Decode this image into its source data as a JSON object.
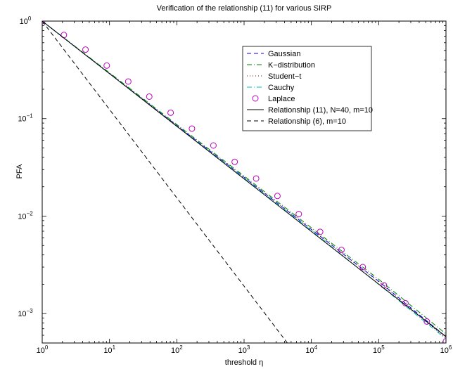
{
  "chart_data": {
    "type": "line",
    "title": "Verification of the relationship (11) for various SIRP",
    "xlabel": "threshold η",
    "ylabel": "PFA",
    "xscale": "log",
    "yscale": "log",
    "xlim": [
      1,
      1000000
    ],
    "ylim": [
      0.0005,
      1
    ],
    "grid": false,
    "legend_position": "top-right",
    "x_ticks": [
      {
        "value": 1,
        "base": "10",
        "exp": "0"
      },
      {
        "value": 10,
        "base": "10",
        "exp": "1"
      },
      {
        "value": 100,
        "base": "10",
        "exp": "2"
      },
      {
        "value": 1000,
        "base": "10",
        "exp": "3"
      },
      {
        "value": 10000,
        "base": "10",
        "exp": "4"
      },
      {
        "value": 100000,
        "base": "10",
        "exp": "5"
      },
      {
        "value": 1000000,
        "base": "10",
        "exp": "6"
      }
    ],
    "y_ticks": [
      {
        "value": 1,
        "base": "10",
        "exp": "0"
      },
      {
        "value": 0.1,
        "base": "10",
        "exp": "−1"
      },
      {
        "value": 0.01,
        "base": "10",
        "exp": "−2"
      },
      {
        "value": 0.001,
        "base": "10",
        "exp": "−3"
      }
    ],
    "series": [
      {
        "name": "Gaussian",
        "style": "dashed",
        "color": "#0000ff",
        "marker": "none",
        "x": [
          1,
          10,
          100,
          1000,
          10000,
          100000,
          1000000
        ],
        "y": [
          1,
          0.29,
          0.085,
          0.025,
          0.0073,
          0.00215,
          0.00058
        ]
      },
      {
        "name": "K−distribution",
        "style": "dashdot",
        "color": "#008000",
        "marker": "none",
        "x": [
          1,
          10,
          100,
          1000,
          10000,
          100000,
          1000000
        ],
        "y": [
          1,
          0.295,
          0.087,
          0.0258,
          0.0076,
          0.00225,
          0.00062
        ]
      },
      {
        "name": "Student−t",
        "style": "dotted",
        "color": "#800000",
        "marker": "none",
        "x": [
          1,
          10,
          100,
          1000,
          10000,
          100000,
          1000000
        ],
        "y": [
          1,
          0.29,
          0.085,
          0.025,
          0.0073,
          0.00212,
          0.00056
        ]
      },
      {
        "name": "Cauchy",
        "style": "dashdot",
        "color": "#00bfbf",
        "marker": "none",
        "x": [
          1,
          10,
          100,
          1000,
          10000,
          100000,
          1000000
        ],
        "y": [
          1,
          0.29,
          0.084,
          0.0245,
          0.0071,
          0.002,
          0.00055
        ]
      },
      {
        "name": "Laplace",
        "style": "none",
        "color": "#bf00bf",
        "marker": "circle",
        "x": [
          1,
          2.1,
          4.4,
          9.1,
          19,
          39,
          81,
          168,
          350,
          725,
          1510,
          3130,
          6500,
          13500,
          28000,
          58000,
          120000,
          250000,
          520000,
          1000000
        ],
        "y": [
          1,
          0.72,
          0.51,
          0.35,
          0.24,
          0.168,
          0.115,
          0.079,
          0.053,
          0.036,
          0.0243,
          0.0161,
          0.0105,
          0.0069,
          0.0045,
          0.003,
          0.00195,
          0.00128,
          0.00083,
          0.00052
        ]
      },
      {
        "name": "Relationship (11), N=40, m=10",
        "style": "solid",
        "color": "#000000",
        "marker": "none",
        "x": [
          1,
          1000000
        ],
        "y": [
          1,
          0.00058
        ]
      },
      {
        "name": "Relationship (6), m=10",
        "style": "dashed",
        "color": "#000000",
        "marker": "none",
        "x": [
          1,
          4400
        ],
        "y": [
          1,
          0.0005
        ]
      }
    ]
  }
}
